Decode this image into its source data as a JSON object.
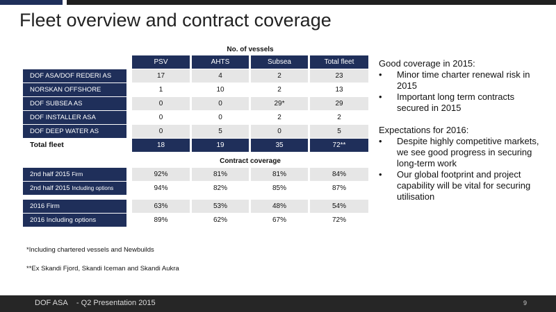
{
  "title": "Fleet overview and contract coverage",
  "vessels": {
    "caption": "No. of vessels",
    "columns": [
      "PSV",
      "AHTS",
      "Subsea",
      "Total fleet"
    ],
    "rows": [
      {
        "label": "DOF ASA/DOF REDERI AS",
        "values": [
          "17",
          "4",
          "2",
          "23"
        ]
      },
      {
        "label": "NORSKAN OFFSHORE",
        "values": [
          "1",
          "10",
          "2",
          "13"
        ]
      },
      {
        "label": "DOF SUBSEA AS",
        "values": [
          "0",
          "0",
          "29*",
          "29"
        ]
      },
      {
        "label": "DOF INSTALLER ASA",
        "values": [
          "0",
          "0",
          "2",
          "2"
        ]
      },
      {
        "label": "DOF DEEP WATER AS",
        "values": [
          "0",
          "5",
          "0",
          "5"
        ]
      }
    ],
    "total": {
      "label": "Total fleet",
      "values": [
        "18",
        "19",
        "35",
        "72**"
      ]
    }
  },
  "coverage": {
    "caption": "Contract coverage",
    "rows": [
      {
        "label": "2nd half 2015",
        "sub": "Firm",
        "values": [
          "92%",
          "81%",
          "81%",
          "84%"
        ]
      },
      {
        "label": "2nd half 2015",
        "sub": "Including options",
        "values": [
          "94%",
          "82%",
          "85%",
          "87%"
        ]
      },
      {
        "label": "2016 Firm",
        "sub": "",
        "values": [
          "63%",
          "53%",
          "48%",
          "54%"
        ]
      },
      {
        "label": "2016 Including options",
        "sub": "",
        "values": [
          "89%",
          "62%",
          "67%",
          "72%"
        ]
      }
    ]
  },
  "notes": {
    "note1": "*Including chartered vessels and Newbuilds",
    "note2": "**Ex Skandi Fjord, Skandi Iceman and Skandi Aukra"
  },
  "right_text": {
    "heading1": "Good coverage in 2015:",
    "bullets1": [
      "Minor time charter renewal risk in 2015",
      "Important long term contracts secured in 2015"
    ],
    "heading2": "Expectations for 2016:",
    "bullets2": [
      "Despite highly competitive markets, we see good progress in securing long-term work",
      "Our global footprint and project capability will be vital for securing utilisation"
    ],
    "bullet_glyph": "•"
  },
  "footer": {
    "company": "DOF ASA",
    "presentation": "- Q2 Presentation 2015",
    "page_number": "9"
  },
  "colors": {
    "navy": "#1f2f5a",
    "footer": "#262626",
    "row_alt": "#e6e6e6"
  }
}
